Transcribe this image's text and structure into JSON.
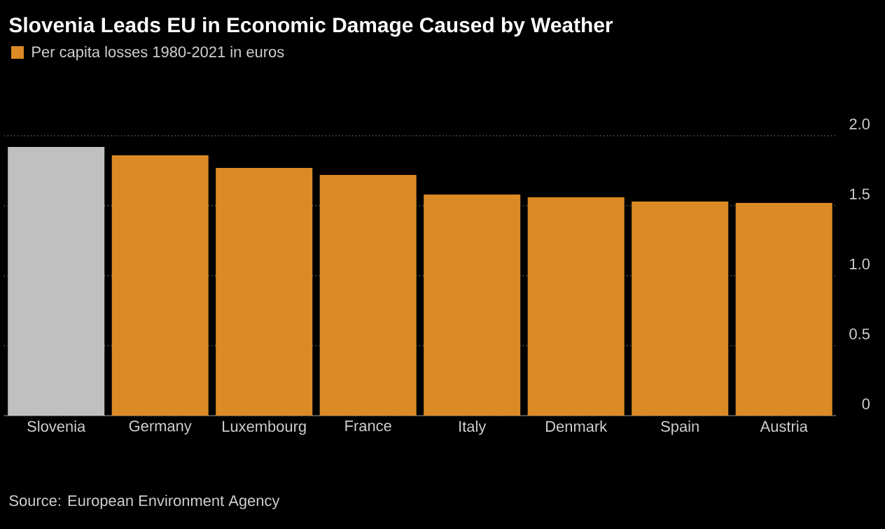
{
  "chart_data": {
    "type": "bar",
    "title": "Slovenia Leads EU in Economic Damage Caused by Weather",
    "categories": [
      "Slovenia",
      "Germany",
      "Luxembourg",
      "France",
      "Italy",
      "Denmark",
      "Spain",
      "Austria"
    ],
    "series": [
      {
        "name": "Per capita losses 1980-2021 in euros",
        "color": "#db8a26",
        "colors": [
          "#c0c0c0",
          "#db8a26",
          "#db8a26",
          "#db8a26",
          "#db8a26",
          "#db8a26",
          "#db8a26",
          "#db8a26"
        ],
        "values": [
          1.92,
          1.86,
          1.77,
          1.72,
          1.58,
          1.56,
          1.53,
          1.52
        ]
      }
    ],
    "ylim": [
      0,
      2.0
    ],
    "yticks": [
      0,
      {
        "value": 0.5,
        "label": "0.5"
      },
      {
        "value": 1.0,
        "label": "1.0"
      },
      {
        "value": 1.5,
        "label": "1.5"
      },
      {
        "value": 2.0,
        "label": "2.0"
      }
    ],
    "grid": "y",
    "legend": "top left",
    "annotations": [
      "Source: European Environment Agency"
    ]
  }
}
